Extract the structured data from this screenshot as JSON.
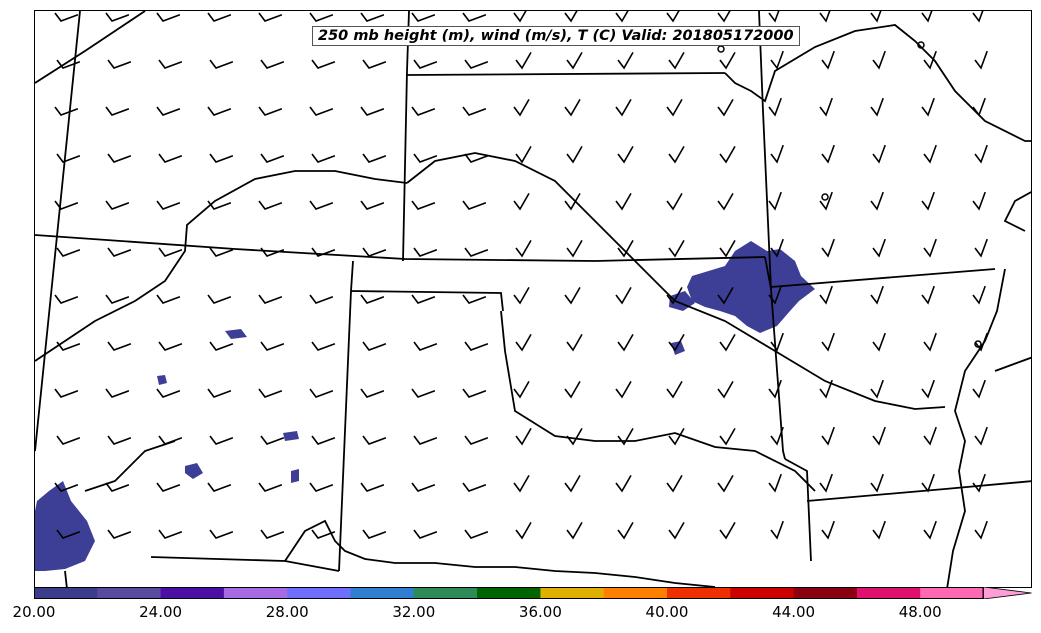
{
  "title": "250 mb height (m), wind (m/s), T (C) Valid: 201805172000",
  "colorbar": {
    "ticks": [
      "20.00",
      "24.00",
      "28.00",
      "32.00",
      "36.00",
      "40.00",
      "44.00",
      "48.00"
    ],
    "colors": [
      "#3c3c8c",
      "#5a4a9e",
      "#4b0fa5",
      "#a86ae3",
      "#6f6fff",
      "#2f7fd0",
      "#2e8b57",
      "#006400",
      "#e0b000",
      "#ff8000",
      "#ee3000",
      "#cc0000",
      "#8b0010",
      "#e0106f",
      "#ff69b4"
    ],
    "extend_color": "#ff9ed6"
  },
  "shading_color": "#3d3f97",
  "wind_barb_color": "#000000",
  "boundary_color": "#000000"
}
